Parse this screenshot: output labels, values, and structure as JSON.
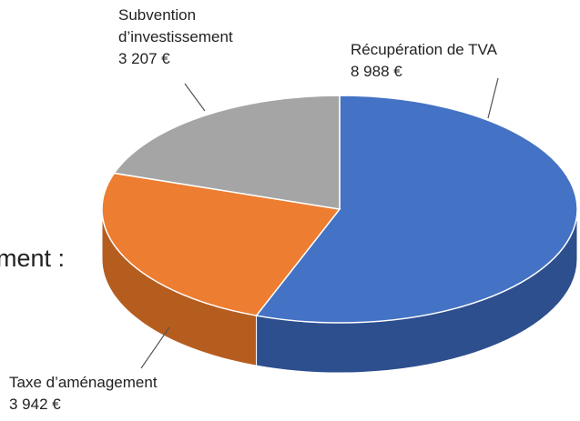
{
  "chart_data": {
    "type": "pie",
    "annotations": [
      "ment :"
    ],
    "categories": [
      "Récupération de TVA",
      "Taxe d’aménagement",
      "Subvention d’investissement"
    ],
    "values": [
      8988,
      3942,
      3207
    ],
    "value_labels": [
      "8 988 €",
      "3 942 €",
      "3 207 €"
    ],
    "colors": [
      "#4472c4",
      "#ed7d31",
      "#a5a5a5"
    ],
    "side_colors": [
      "#2d4f8e",
      "#b55d1f",
      "#7f7f7f"
    ]
  }
}
